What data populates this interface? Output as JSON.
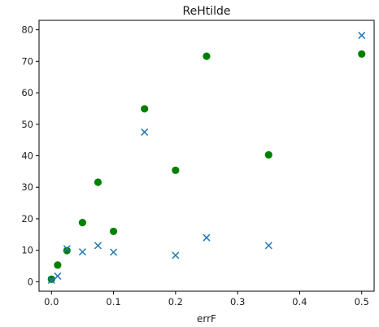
{
  "chart_data": {
    "type": "scatter",
    "title": "ReHtilde",
    "xlabel": "errF",
    "ylabel": "",
    "xlim": [
      -0.02,
      0.52
    ],
    "ylim": [
      -3,
      83
    ],
    "x_ticks": [
      0.0,
      0.1,
      0.2,
      0.3,
      0.4,
      0.5
    ],
    "x_tick_labels": [
      "0.0",
      "0.1",
      "0.2",
      "0.3",
      "0.4",
      "0.5"
    ],
    "y_ticks": [
      0,
      10,
      20,
      30,
      40,
      50,
      60,
      70,
      80
    ],
    "y_tick_labels": [
      "0",
      "10",
      "20",
      "30",
      "40",
      "50",
      "60",
      "70",
      "80"
    ],
    "grid": false,
    "series": [
      {
        "marker": "circle",
        "color": "#008000",
        "points": [
          {
            "x": 0.0,
            "y": 0.8
          },
          {
            "x": 0.01,
            "y": 5.3
          },
          {
            "x": 0.025,
            "y": 9.9
          },
          {
            "x": 0.05,
            "y": 18.8
          },
          {
            "x": 0.075,
            "y": 31.6
          },
          {
            "x": 0.1,
            "y": 16.0
          },
          {
            "x": 0.15,
            "y": 54.9
          },
          {
            "x": 0.2,
            "y": 35.4
          },
          {
            "x": 0.25,
            "y": 71.6
          },
          {
            "x": 0.35,
            "y": 40.3
          },
          {
            "x": 0.5,
            "y": 72.3
          }
        ]
      },
      {
        "marker": "x",
        "color": "#1f77b4",
        "points": [
          {
            "x": 0.0,
            "y": 0.5
          },
          {
            "x": 0.01,
            "y": 1.8
          },
          {
            "x": 0.025,
            "y": 10.5
          },
          {
            "x": 0.05,
            "y": 9.5
          },
          {
            "x": 0.075,
            "y": 11.5
          },
          {
            "x": 0.1,
            "y": 9.4
          },
          {
            "x": 0.15,
            "y": 47.5
          },
          {
            "x": 0.2,
            "y": 8.4
          },
          {
            "x": 0.25,
            "y": 14.0
          },
          {
            "x": 0.35,
            "y": 11.5
          },
          {
            "x": 0.5,
            "y": 78.2
          }
        ]
      }
    ]
  }
}
